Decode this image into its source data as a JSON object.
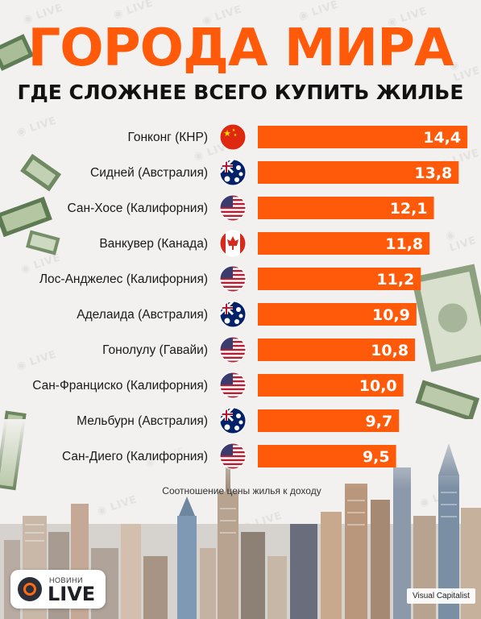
{
  "header": {
    "title": "ГОРОДА МИРА",
    "subtitle": "ГДЕ СЛОЖНЕЕ ВСЕГО КУПИТЬ ЖИЛЬЕ"
  },
  "colors": {
    "accent": "#ff5a0a",
    "bar": "#ff5a0a",
    "background": "#f2f1ef"
  },
  "chart_data": {
    "type": "bar",
    "orientation": "horizontal",
    "categories": [
      "Гонконг (КНР)",
      "Сидней (Австралия)",
      "Сан-Хосе (Калифорния)",
      "Ванкувер (Канада)",
      "Лос-Анджелес (Калифорния)",
      "Аделаида (Австралия)",
      "Гонолулу (Гавайи)",
      "Сан-Франциско (Калифорния)",
      "Мельбурн (Австралия)",
      "Сан-Диего (Калифорния)"
    ],
    "values": [
      14.4,
      13.8,
      12.1,
      11.8,
      11.2,
      10.9,
      10.8,
      10.0,
      9.7,
      9.5
    ],
    "value_labels": [
      "14,4",
      "13,8",
      "12,1",
      "11,8",
      "11,2",
      "10,9",
      "10,8",
      "10,0",
      "9,7",
      "9,5"
    ],
    "flags": [
      "china-flag-icon",
      "australia-flag-icon",
      "usa-flag-icon",
      "canada-flag-icon",
      "usa-flag-icon",
      "australia-flag-icon",
      "usa-flag-icon",
      "usa-flag-icon",
      "australia-flag-icon",
      "usa-flag-icon"
    ],
    "xlabel": "Соотношение цены жилья к доходу",
    "xlim": [
      0,
      15.5
    ],
    "grid": false,
    "legend": "none"
  },
  "branding": {
    "logo_small": "НОВИНИ",
    "logo_big": "LIVE",
    "watermark": "LIVE",
    "source": "Visual Capitalist"
  }
}
